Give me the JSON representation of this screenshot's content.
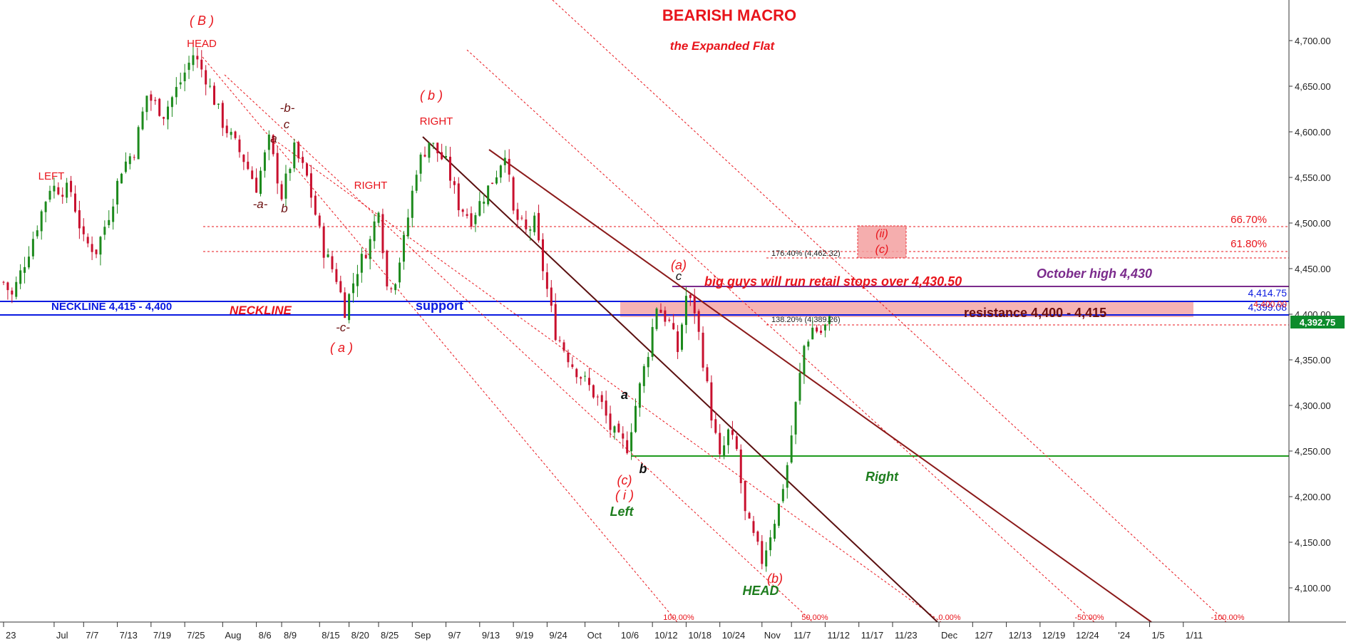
{
  "chart_data": {
    "type": "candlestick",
    "title": "BEARISH MACRO",
    "subtitle": "the Expanded Flat",
    "ylim": [
      4060,
      4740
    ],
    "y_ticks": [
      "4,700.00",
      "4,650.00",
      "4,600.00",
      "4,550.00",
      "4,500.00",
      "4,450.00",
      "4,400.00",
      "4,350.00",
      "4,300.00",
      "4,250.00",
      "4,200.00",
      "4,150.00",
      "4,100.00"
    ],
    "y_tick_values": [
      4700,
      4650,
      4600,
      4550,
      4500,
      4450,
      4400,
      4350,
      4300,
      4250,
      4200,
      4150,
      4100
    ],
    "x_ticks": [
      "23",
      "Jul",
      "7/7",
      "7/13",
      "7/19",
      "7/25",
      "Aug",
      "8/6",
      "8/9",
      "8/15",
      "8/20",
      "8/25",
      "Sep",
      "9/7",
      "9/13",
      "9/19",
      "9/24",
      "Oct",
      "10/6",
      "10/12",
      "10/18",
      "10/24",
      "Nov",
      "11/7",
      "11/12",
      "11/17",
      "11/23",
      "Dec",
      "12/7",
      "12/13",
      "12/19",
      "12/24",
      "'24",
      "1/5",
      "1/11"
    ],
    "x_tick_index": [
      0,
      12,
      19,
      27,
      35,
      43,
      52,
      60,
      66,
      75,
      82,
      89,
      97,
      105,
      113,
      121,
      129,
      138,
      146,
      154,
      162,
      170,
      180,
      187,
      195,
      203,
      211,
      222,
      230,
      238,
      246,
      254,
      264,
      272,
      280
    ],
    "last_price": "4,392.75",
    "last_price_value": 4392.75,
    "anchors": [
      [
        0,
        4435
      ],
      [
        2,
        4420
      ],
      [
        6,
        4470
      ],
      [
        11,
        4540
      ],
      [
        16,
        4535
      ],
      [
        19,
        4480
      ],
      [
        22,
        4470
      ],
      [
        25,
        4510
      ],
      [
        28,
        4560
      ],
      [
        31,
        4580
      ],
      [
        34,
        4640
      ],
      [
        38,
        4620
      ],
      [
        42,
        4655
      ],
      [
        45,
        4685
      ],
      [
        48,
        4660
      ],
      [
        52,
        4610
      ],
      [
        57,
        4570
      ],
      [
        60,
        4540
      ],
      [
        63,
        4590
      ],
      [
        66,
        4530
      ],
      [
        69,
        4580
      ],
      [
        72,
        4550
      ],
      [
        76,
        4470
      ],
      [
        79,
        4440
      ],
      [
        81,
        4405
      ],
      [
        84,
        4450
      ],
      [
        87,
        4480
      ],
      [
        89,
        4520
      ],
      [
        91,
        4430
      ],
      [
        93,
        4440
      ],
      [
        95,
        4480
      ],
      [
        98,
        4560
      ],
      [
        101,
        4590
      ],
      [
        105,
        4565
      ],
      [
        108,
        4520
      ],
      [
        111,
        4505
      ],
      [
        114,
        4530
      ],
      [
        117,
        4555
      ],
      [
        119,
        4580
      ],
      [
        121,
        4510
      ],
      [
        124,
        4490
      ],
      [
        126,
        4500
      ],
      [
        128,
        4450
      ],
      [
        131,
        4380
      ],
      [
        135,
        4345
      ],
      [
        139,
        4320
      ],
      [
        142,
        4300
      ],
      [
        144,
        4275
      ],
      [
        146,
        4262
      ],
      [
        148,
        4255
      ],
      [
        150,
        4300
      ],
      [
        153,
        4360
      ],
      [
        155,
        4410
      ],
      [
        158,
        4390
      ],
      [
        160,
        4360
      ],
      [
        162,
        4420
      ],
      [
        164,
        4405
      ],
      [
        166,
        4350
      ],
      [
        168,
        4290
      ],
      [
        170,
        4240
      ],
      [
        172,
        4270
      ],
      [
        174,
        4250
      ],
      [
        176,
        4180
      ],
      [
        178,
        4155
      ],
      [
        180,
        4130
      ],
      [
        182,
        4160
      ],
      [
        184,
        4190
      ],
      [
        186,
        4235
      ],
      [
        188,
        4300
      ],
      [
        190,
        4365
      ],
      [
        192,
        4385
      ],
      [
        194,
        4380
      ],
      [
        196,
        4392
      ]
    ],
    "annotations": {
      "b_paren": "( B )",
      "head_top": "HEAD",
      "left": "LEFT",
      "right_1": "RIGHT",
      "b_small_paren": "( b )",
      "right_2": "RIGHT",
      "b_dash": "-b-",
      "c_1": "c",
      "a_1": "a",
      "a_dash": "-a-",
      "b_1": "b",
      "c_dash": "-c-",
      "a_paren": "( a )",
      "neckline_label": "NECKLINE 4,415 - 4,400",
      "neckline": "NECKLINE",
      "support": "support",
      "a_paren_2": "(a)",
      "c_2": "c",
      "big_guys": "big guys will run retail stops over 4,430.50",
      "october_high": "October high 4,430",
      "resistance": "resistance 4,400 - 4,415",
      "ii_label": "(ii)",
      "c_paren": "(c)",
      "fib_176": "176.40% (4,462.32)",
      "fib_138": "138.20% (4,389.26)",
      "pct_667": "66.70%",
      "pct_618": "61.80%",
      "a_black": "a",
      "b_black": "b",
      "c_paren_2": "(c)",
      "i_paren": "( i )",
      "left_green": "Left",
      "right_green": "Right",
      "b_paren_bottom": "(b)",
      "head_green": "HEAD",
      "lvl_4414": "4,414.75",
      "lvl_4399": "4,399.08",
      "lvl_4400": "4,400.00"
    },
    "channel_labels": [
      "100.00%",
      "50.00%",
      "0.00%",
      "-50.00%",
      "-100.00%"
    ]
  },
  "colors": {
    "red": "#e8141b",
    "dark_red": "#8b1a1a",
    "blue": "#0a1ae0",
    "purple": "#7b2b8c",
    "green": "#1e7d1e",
    "candle_up": "#1d8a1d",
    "candle_down": "#c8102e",
    "zone_fill": "#f4a0a0"
  }
}
